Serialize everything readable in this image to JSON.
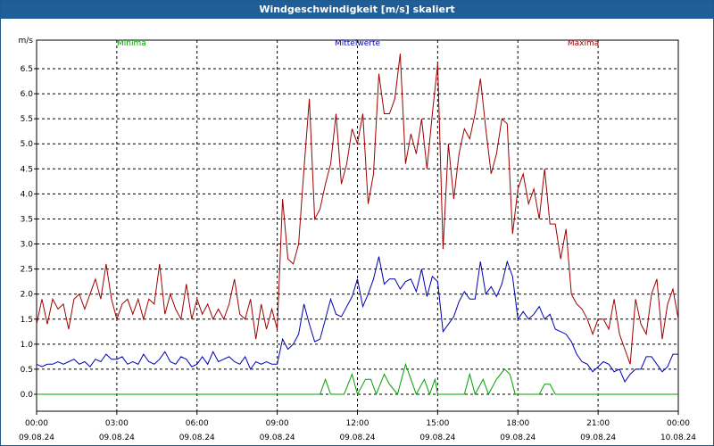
{
  "window": {
    "title": "Windgeschwindigkeit [m/s] skaliert"
  },
  "colors": {
    "title_bg": "#1f5e99",
    "minima": "#00a000",
    "mittel": "#0000b0",
    "maxima": "#a00000",
    "grid": "#000000"
  },
  "chart_data": {
    "type": "line",
    "title": "Windgeschwindigkeit [m/s] skaliert",
    "ylabel": "m/s",
    "ylim": [
      0,
      7.0
    ],
    "xlim_hours": [
      0,
      24
    ],
    "yticks": [
      "0.0",
      "0.5",
      "1.0",
      "1.5",
      "2.0",
      "2.5",
      "3.0",
      "3.5",
      "4.0",
      "4.5",
      "5.0",
      "5.5",
      "6.0",
      "6.5"
    ],
    "xticks": [
      {
        "time": "00:00",
        "date": "09.08.24"
      },
      {
        "time": "03:00",
        "date": "09.08.24"
      },
      {
        "time": "06:00",
        "date": "09.08.24"
      },
      {
        "time": "09:00",
        "date": "09.08.24"
      },
      {
        "time": "12:00",
        "date": "09.08.24"
      },
      {
        "time": "15:00",
        "date": "09.08.24"
      },
      {
        "time": "18:00",
        "date": "09.08.24"
      },
      {
        "time": "21:00",
        "date": "09.08.24"
      },
      {
        "time": "00:00",
        "date": "10.08.24"
      }
    ],
    "grid": true,
    "legend": [
      "Minima",
      "Mittelwerte",
      "Maxima"
    ],
    "legend_placement": "top",
    "series": [
      {
        "name": "Minima",
        "color": "#00a000",
        "values": [
          [
            0,
            0
          ],
          [
            10.6,
            0
          ],
          [
            10.8,
            0.3
          ],
          [
            11.0,
            0
          ],
          [
            11.5,
            0
          ],
          [
            11.8,
            0.4
          ],
          [
            12.0,
            0
          ],
          [
            12.3,
            0.3
          ],
          [
            12.5,
            0.3
          ],
          [
            12.7,
            0
          ],
          [
            13.0,
            0.4
          ],
          [
            13.2,
            0.2
          ],
          [
            13.5,
            0
          ],
          [
            13.8,
            0.6
          ],
          [
            14.0,
            0.3
          ],
          [
            14.2,
            0
          ],
          [
            14.5,
            0.3
          ],
          [
            14.7,
            0
          ],
          [
            14.9,
            0.3
          ],
          [
            15.0,
            0
          ],
          [
            16.0,
            0
          ],
          [
            16.2,
            0.4
          ],
          [
            16.4,
            0
          ],
          [
            16.7,
            0.3
          ],
          [
            16.9,
            0
          ],
          [
            17.2,
            0.3
          ],
          [
            17.5,
            0.5
          ],
          [
            17.7,
            0.4
          ],
          [
            17.9,
            0
          ],
          [
            18.8,
            0
          ],
          [
            19.0,
            0.2
          ],
          [
            19.2,
            0.2
          ],
          [
            19.4,
            0
          ],
          [
            24,
            0
          ]
        ]
      },
      {
        "name": "Mittelwerte",
        "color": "#0000b0",
        "values": [
          [
            0,
            0.6
          ],
          [
            0.2,
            0.55
          ],
          [
            0.4,
            0.6
          ],
          [
            0.6,
            0.6
          ],
          [
            0.8,
            0.65
          ],
          [
            1.0,
            0.6
          ],
          [
            1.2,
            0.65
          ],
          [
            1.4,
            0.7
          ],
          [
            1.6,
            0.6
          ],
          [
            1.8,
            0.65
          ],
          [
            2.0,
            0.55
          ],
          [
            2.2,
            0.7
          ],
          [
            2.4,
            0.65
          ],
          [
            2.6,
            0.8
          ],
          [
            2.8,
            0.7
          ],
          [
            3.0,
            0.7
          ],
          [
            3.2,
            0.75
          ],
          [
            3.4,
            0.6
          ],
          [
            3.6,
            0.65
          ],
          [
            3.8,
            0.6
          ],
          [
            4.0,
            0.8
          ],
          [
            4.2,
            0.65
          ],
          [
            4.4,
            0.6
          ],
          [
            4.6,
            0.7
          ],
          [
            4.8,
            0.85
          ],
          [
            5.0,
            0.65
          ],
          [
            5.2,
            0.6
          ],
          [
            5.4,
            0.75
          ],
          [
            5.6,
            0.7
          ],
          [
            5.8,
            0.55
          ],
          [
            6.0,
            0.6
          ],
          [
            6.2,
            0.75
          ],
          [
            6.4,
            0.6
          ],
          [
            6.6,
            0.85
          ],
          [
            6.8,
            0.65
          ],
          [
            7.0,
            0.7
          ],
          [
            7.2,
            0.75
          ],
          [
            7.4,
            0.65
          ],
          [
            7.6,
            0.6
          ],
          [
            7.8,
            0.75
          ],
          [
            8.0,
            0.5
          ],
          [
            8.2,
            0.65
          ],
          [
            8.4,
            0.6
          ],
          [
            8.6,
            0.65
          ],
          [
            8.8,
            0.6
          ],
          [
            9.0,
            0.6
          ],
          [
            9.2,
            1.1
          ],
          [
            9.4,
            0.9
          ],
          [
            9.6,
            1.0
          ],
          [
            9.8,
            1.2
          ],
          [
            10.0,
            1.8
          ],
          [
            10.2,
            1.4
          ],
          [
            10.4,
            1.05
          ],
          [
            10.6,
            1.1
          ],
          [
            10.8,
            1.5
          ],
          [
            11.0,
            1.9
          ],
          [
            11.2,
            1.6
          ],
          [
            11.4,
            1.55
          ],
          [
            11.6,
            1.75
          ],
          [
            11.8,
            1.95
          ],
          [
            12.0,
            2.3
          ],
          [
            12.2,
            1.75
          ],
          [
            12.4,
            2.0
          ],
          [
            12.6,
            2.3
          ],
          [
            12.8,
            2.75
          ],
          [
            13.0,
            2.2
          ],
          [
            13.2,
            2.3
          ],
          [
            13.4,
            2.3
          ],
          [
            13.6,
            2.1
          ],
          [
            13.8,
            2.25
          ],
          [
            14.0,
            2.3
          ],
          [
            14.2,
            2.05
          ],
          [
            14.4,
            2.5
          ],
          [
            14.6,
            1.95
          ],
          [
            14.8,
            2.35
          ],
          [
            15.0,
            2.25
          ],
          [
            15.2,
            1.25
          ],
          [
            15.4,
            1.4
          ],
          [
            15.6,
            1.55
          ],
          [
            15.8,
            1.85
          ],
          [
            16.0,
            2.05
          ],
          [
            16.2,
            1.9
          ],
          [
            16.4,
            1.9
          ],
          [
            16.6,
            2.65
          ],
          [
            16.8,
            2.0
          ],
          [
            17.0,
            2.15
          ],
          [
            17.2,
            1.95
          ],
          [
            17.4,
            2.2
          ],
          [
            17.6,
            2.65
          ],
          [
            17.8,
            2.35
          ],
          [
            18.0,
            1.5
          ],
          [
            18.2,
            1.65
          ],
          [
            18.4,
            1.5
          ],
          [
            18.6,
            1.6
          ],
          [
            18.8,
            1.75
          ],
          [
            19.0,
            1.5
          ],
          [
            19.2,
            1.6
          ],
          [
            19.4,
            1.3
          ],
          [
            19.6,
            1.25
          ],
          [
            19.8,
            1.2
          ],
          [
            20.0,
            1.05
          ],
          [
            20.2,
            0.8
          ],
          [
            20.4,
            0.65
          ],
          [
            20.6,
            0.6
          ],
          [
            20.8,
            0.45
          ],
          [
            21.0,
            0.55
          ],
          [
            21.2,
            0.65
          ],
          [
            21.4,
            0.6
          ],
          [
            21.6,
            0.45
          ],
          [
            21.8,
            0.5
          ],
          [
            22.0,
            0.25
          ],
          [
            22.2,
            0.4
          ],
          [
            22.4,
            0.5
          ],
          [
            22.6,
            0.5
          ],
          [
            22.8,
            0.75
          ],
          [
            23.0,
            0.75
          ],
          [
            23.2,
            0.6
          ],
          [
            23.4,
            0.45
          ],
          [
            23.6,
            0.55
          ],
          [
            23.8,
            0.8
          ],
          [
            24.0,
            0.8
          ]
        ]
      },
      {
        "name": "Maxima",
        "color": "#a00000",
        "values": [
          [
            0,
            1.4
          ],
          [
            0.2,
            1.9
          ],
          [
            0.4,
            1.4
          ],
          [
            0.6,
            1.9
          ],
          [
            0.8,
            1.7
          ],
          [
            1.0,
            1.8
          ],
          [
            1.2,
            1.3
          ],
          [
            1.4,
            1.9
          ],
          [
            1.6,
            2.0
          ],
          [
            1.8,
            1.7
          ],
          [
            2.0,
            2.0
          ],
          [
            2.2,
            2.3
          ],
          [
            2.4,
            1.9
          ],
          [
            2.6,
            2.6
          ],
          [
            2.8,
            1.9
          ],
          [
            3.0,
            1.5
          ],
          [
            3.2,
            1.8
          ],
          [
            3.4,
            1.9
          ],
          [
            3.6,
            1.6
          ],
          [
            3.8,
            1.9
          ],
          [
            4.0,
            1.5
          ],
          [
            4.2,
            1.9
          ],
          [
            4.4,
            1.8
          ],
          [
            4.6,
            2.6
          ],
          [
            4.8,
            1.6
          ],
          [
            5.0,
            2.0
          ],
          [
            5.2,
            1.7
          ],
          [
            5.4,
            1.5
          ],
          [
            5.6,
            2.2
          ],
          [
            5.8,
            1.5
          ],
          [
            6.0,
            1.9
          ],
          [
            6.2,
            1.6
          ],
          [
            6.4,
            1.8
          ],
          [
            6.6,
            1.5
          ],
          [
            6.8,
            1.7
          ],
          [
            7.0,
            1.5
          ],
          [
            7.2,
            1.8
          ],
          [
            7.4,
            2.3
          ],
          [
            7.6,
            1.6
          ],
          [
            7.8,
            1.5
          ],
          [
            8.0,
            1.9
          ],
          [
            8.2,
            1.1
          ],
          [
            8.4,
            1.8
          ],
          [
            8.6,
            1.3
          ],
          [
            8.8,
            1.7
          ],
          [
            9.0,
            1.3
          ],
          [
            9.2,
            3.9
          ],
          [
            9.4,
            2.7
          ],
          [
            9.6,
            2.6
          ],
          [
            9.8,
            3.0
          ],
          [
            10.0,
            4.5
          ],
          [
            10.2,
            5.9
          ],
          [
            10.4,
            3.5
          ],
          [
            10.6,
            3.7
          ],
          [
            10.8,
            4.2
          ],
          [
            11.0,
            4.6
          ],
          [
            11.2,
            5.6
          ],
          [
            11.4,
            4.2
          ],
          [
            11.6,
            4.6
          ],
          [
            11.8,
            5.3
          ],
          [
            12.0,
            5.0
          ],
          [
            12.2,
            5.6
          ],
          [
            12.4,
            3.8
          ],
          [
            12.6,
            4.4
          ],
          [
            12.8,
            6.4
          ],
          [
            13.0,
            5.6
          ],
          [
            13.2,
            5.6
          ],
          [
            13.4,
            5.9
          ],
          [
            13.6,
            6.8
          ],
          [
            13.8,
            4.6
          ],
          [
            14.0,
            5.2
          ],
          [
            14.2,
            4.8
          ],
          [
            14.4,
            5.5
          ],
          [
            14.6,
            4.5
          ],
          [
            14.8,
            5.6
          ],
          [
            15.0,
            6.6
          ],
          [
            15.2,
            2.9
          ],
          [
            15.4,
            5.0
          ],
          [
            15.6,
            3.9
          ],
          [
            15.8,
            4.8
          ],
          [
            16.0,
            5.3
          ],
          [
            16.2,
            5.1
          ],
          [
            16.4,
            5.6
          ],
          [
            16.6,
            6.3
          ],
          [
            16.8,
            5.3
          ],
          [
            17.0,
            4.4
          ],
          [
            17.2,
            4.8
          ],
          [
            17.4,
            5.5
          ],
          [
            17.6,
            5.4
          ],
          [
            17.8,
            3.2
          ],
          [
            18.0,
            4.1
          ],
          [
            18.2,
            4.4
          ],
          [
            18.4,
            3.8
          ],
          [
            18.6,
            4.1
          ],
          [
            18.8,
            3.5
          ],
          [
            19.0,
            4.5
          ],
          [
            19.2,
            3.4
          ],
          [
            19.4,
            3.4
          ],
          [
            19.6,
            2.7
          ],
          [
            19.8,
            3.3
          ],
          [
            20.0,
            2.0
          ],
          [
            20.2,
            1.8
          ],
          [
            20.4,
            1.7
          ],
          [
            20.6,
            1.5
          ],
          [
            20.8,
            1.2
          ],
          [
            21.0,
            1.5
          ],
          [
            21.2,
            1.5
          ],
          [
            21.4,
            1.3
          ],
          [
            21.6,
            1.9
          ],
          [
            21.8,
            1.2
          ],
          [
            22.0,
            0.9
          ],
          [
            22.2,
            0.6
          ],
          [
            22.4,
            1.9
          ],
          [
            22.6,
            1.4
          ],
          [
            22.8,
            1.2
          ],
          [
            23.0,
            2.0
          ],
          [
            23.2,
            2.3
          ],
          [
            23.4,
            1.1
          ],
          [
            23.6,
            1.8
          ],
          [
            23.8,
            2.1
          ],
          [
            24.0,
            1.5
          ]
        ]
      }
    ]
  }
}
